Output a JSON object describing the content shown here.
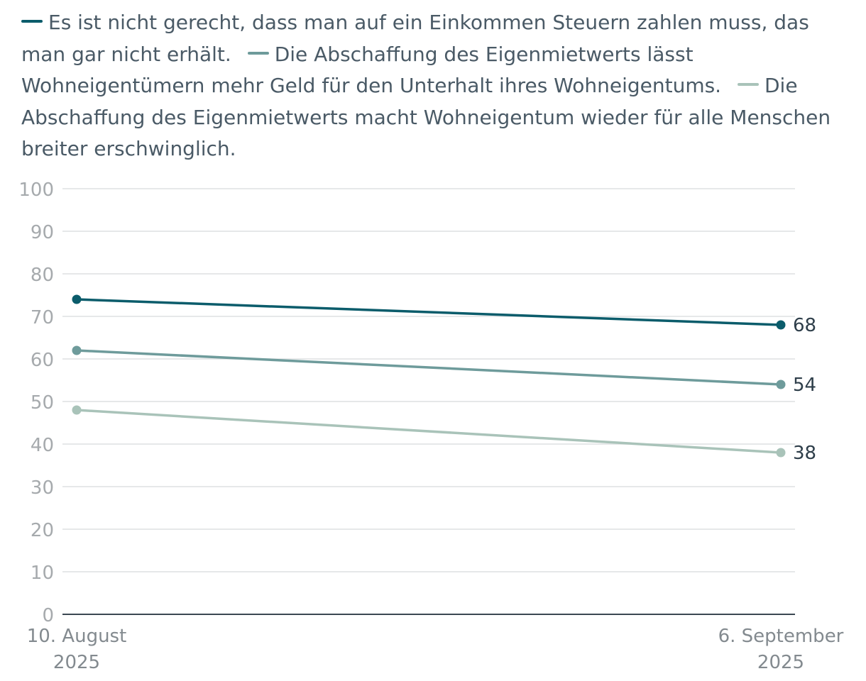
{
  "chart_data": {
    "type": "line",
    "x": [
      "10. August 2025",
      "6. September 2025"
    ],
    "x_tick_lines": [
      [
        "10. August",
        "2025"
      ],
      [
        "6. September",
        "2025"
      ]
    ],
    "series": [
      {
        "name": "Es ist nicht gerecht, dass man auf ein Einkommen Steuern zahlen muss, das man gar nicht erhält.",
        "color": "#0b5c6b",
        "values": [
          74,
          68
        ],
        "end_label": "68"
      },
      {
        "name": "Die Abschaffung des Eigenmietwerts lässt Wohneigentümern mehr Geld für den Unterhalt ihres Wohneigentums.",
        "color": "#6e9b9b",
        "values": [
          62,
          54
        ],
        "end_label": "54"
      },
      {
        "name": "Die Abschaffung des Eigenmietwerts macht Wohneigentum wieder für alle Menschen breiter erschwinglich.",
        "color": "#a9c3b9",
        "values": [
          48,
          38
        ],
        "end_label": "38"
      }
    ],
    "ylim": [
      0,
      100
    ],
    "yticks": [
      "0",
      "10",
      "20",
      "30",
      "40",
      "50",
      "60",
      "70",
      "80",
      "90",
      "100"
    ],
    "grid": true,
    "legend": "top",
    "title": "",
    "xlabel": "",
    "ylabel": ""
  }
}
